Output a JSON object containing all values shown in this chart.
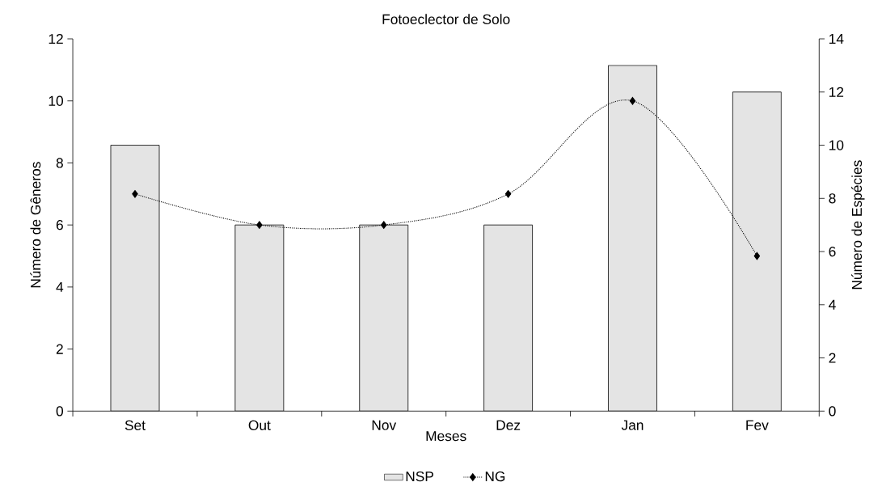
{
  "chart_data": {
    "type": "bar",
    "title": "Fotoeclector de Solo",
    "xlabel": "Meses",
    "ylabel": "Número de Gêneros",
    "y2label": "Número de Espécies",
    "categories": [
      "Set",
      "Out",
      "Nov",
      "Dez",
      "Jan",
      "Fev"
    ],
    "series": [
      {
        "name": "NSP",
        "axis": "y2",
        "color": "#e4e4e4",
        "values": [
          10,
          7,
          7,
          7,
          13,
          12
        ]
      },
      {
        "name": "NG",
        "type": "line",
        "color": "#000000",
        "values": [
          7,
          6,
          6,
          7,
          10,
          5
        ]
      }
    ],
    "ylim": [
      0,
      12
    ],
    "yticks": [
      0,
      2,
      4,
      6,
      8,
      10,
      12
    ],
    "y2lim": [
      0,
      14
    ],
    "y2ticks": [
      0,
      2,
      4,
      6,
      8,
      10,
      12,
      14
    ],
    "grid": false,
    "legend": "bottom",
    "marker": "diamond",
    "line_style": "dotted"
  }
}
